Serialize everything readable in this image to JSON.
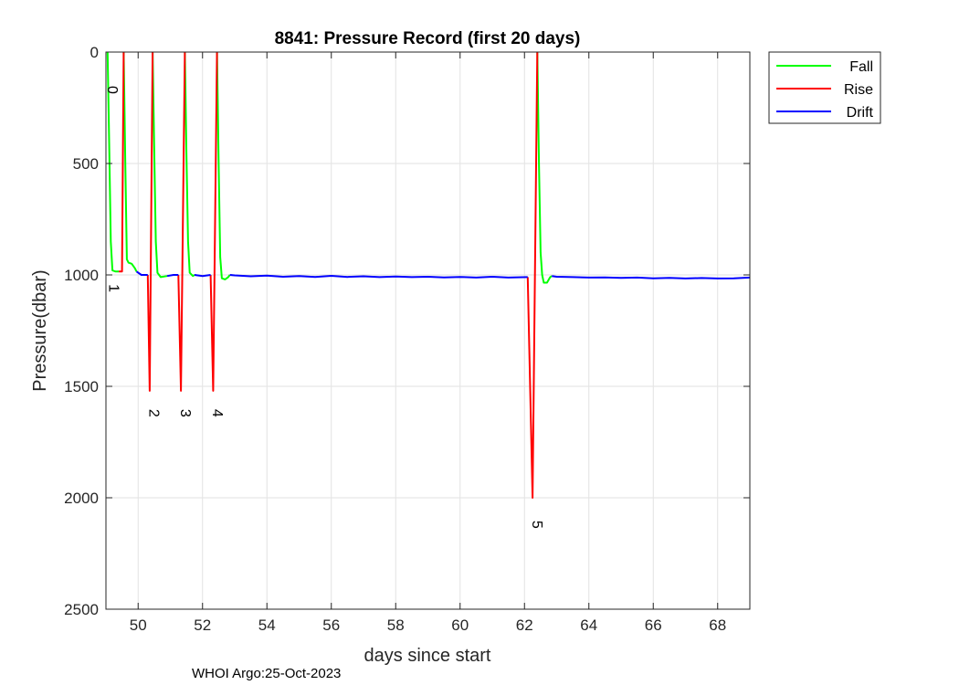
{
  "chart_data": {
    "type": "line",
    "title": "8841: Pressure Record (first 20 days)",
    "xlabel": "days since start",
    "ylabel": "Pressure(dbar)",
    "xlim": [
      49,
      69
    ],
    "ylim": [
      2500,
      0
    ],
    "y_reversed": true,
    "xticks": [
      50,
      52,
      54,
      56,
      58,
      60,
      62,
      64,
      66,
      68
    ],
    "yticks": [
      0,
      500,
      1000,
      1500,
      2000,
      2500
    ],
    "grid": true,
    "legend_position": "outside-top-right",
    "series": [
      {
        "name": "Fall",
        "color": "#00ff00",
        "segments": [
          [
            [
              49.05,
              0
            ],
            [
              49.1,
              400
            ],
            [
              49.15,
              850
            ],
            [
              49.2,
              980
            ],
            [
              49.3,
              985
            ],
            [
              49.4,
              985
            ]
          ],
          [
            [
              49.55,
              0
            ],
            [
              49.6,
              500
            ],
            [
              49.65,
              930
            ],
            [
              49.7,
              945
            ],
            [
              49.8,
              950
            ],
            [
              49.9,
              970
            ],
            [
              49.95,
              985
            ]
          ],
          [
            [
              50.45,
              0
            ],
            [
              50.5,
              450
            ],
            [
              50.55,
              850
            ],
            [
              50.6,
              990
            ],
            [
              50.7,
              1010
            ],
            [
              50.9,
              1005
            ]
          ],
          [
            [
              51.45,
              0
            ],
            [
              51.5,
              450
            ],
            [
              51.55,
              850
            ],
            [
              51.6,
              990
            ],
            [
              51.7,
              1005
            ],
            [
              51.75,
              1000
            ]
          ],
          [
            [
              52.45,
              0
            ],
            [
              52.5,
              500
            ],
            [
              52.55,
              920
            ],
            [
              52.6,
              1015
            ],
            [
              52.7,
              1020
            ],
            [
              52.8,
              1010
            ],
            [
              52.85,
              1000
            ]
          ],
          [
            [
              62.4,
              0
            ],
            [
              62.45,
              500
            ],
            [
              62.5,
              900
            ],
            [
              62.55,
              1000
            ],
            [
              62.6,
              1035
            ],
            [
              62.7,
              1035
            ],
            [
              62.8,
              1010
            ],
            [
              62.85,
              1005
            ]
          ]
        ]
      },
      {
        "name": "Rise",
        "color": "#ff0000",
        "segments": [
          [
            [
              49.4,
              985
            ],
            [
              49.5,
              985
            ],
            [
              49.55,
              0
            ]
          ],
          [
            [
              50.3,
              1000
            ],
            [
              50.36,
              1520
            ],
            [
              50.45,
              0
            ]
          ],
          [
            [
              51.25,
              1000
            ],
            [
              51.33,
              1520
            ],
            [
              51.45,
              0
            ]
          ],
          [
            [
              52.25,
              1000
            ],
            [
              52.33,
              1520
            ],
            [
              52.45,
              0
            ]
          ],
          [
            [
              62.1,
              1010
            ],
            [
              62.25,
              2000
            ],
            [
              62.4,
              0
            ]
          ]
        ]
      },
      {
        "name": "Drift",
        "color": "#0000ff",
        "segments": [
          [
            [
              49.95,
              985
            ],
            [
              50.1,
              1000
            ],
            [
              50.3,
              1000
            ]
          ],
          [
            [
              50.9,
              1005
            ],
            [
              51.1,
              1000
            ],
            [
              51.25,
              1000
            ]
          ],
          [
            [
              51.75,
              1000
            ],
            [
              52.0,
              1005
            ],
            [
              52.25,
              1000
            ]
          ],
          [
            [
              52.85,
              1000
            ],
            [
              53,
              1002
            ],
            [
              53.5,
              1006
            ],
            [
              54,
              1003
            ],
            [
              54.5,
              1008
            ],
            [
              55,
              1005
            ],
            [
              55.5,
              1009
            ],
            [
              56,
              1004
            ],
            [
              56.5,
              1009
            ],
            [
              57,
              1006
            ],
            [
              57.5,
              1010
            ],
            [
              58,
              1007
            ],
            [
              58.5,
              1010
            ],
            [
              59,
              1008
            ],
            [
              59.5,
              1011
            ],
            [
              60,
              1009
            ],
            [
              60.5,
              1012
            ],
            [
              61,
              1008
            ],
            [
              61.5,
              1012
            ],
            [
              62.1,
              1010
            ]
          ],
          [
            [
              62.85,
              1005
            ],
            [
              63,
              1008
            ],
            [
              63.5,
              1010
            ],
            [
              64,
              1012
            ],
            [
              64.5,
              1011
            ],
            [
              65,
              1013
            ],
            [
              65.5,
              1012
            ],
            [
              66,
              1015
            ],
            [
              66.5,
              1013
            ],
            [
              67,
              1016
            ],
            [
              67.5,
              1014
            ],
            [
              68,
              1016
            ],
            [
              68.5,
              1015
            ],
            [
              69,
              1012
            ]
          ]
        ]
      }
    ],
    "annotations": [
      {
        "text": "0",
        "x": 49.05,
        "y": 170
      },
      {
        "text": "1",
        "x": 49.1,
        "y": 1060
      },
      {
        "text": "2",
        "x": 50.35,
        "y": 1620
      },
      {
        "text": "3",
        "x": 51.33,
        "y": 1620
      },
      {
        "text": "4",
        "x": 52.32,
        "y": 1620
      },
      {
        "text": "5",
        "x": 62.25,
        "y": 2120
      }
    ]
  },
  "footer": "WHOI Argo:25-Oct-2023"
}
